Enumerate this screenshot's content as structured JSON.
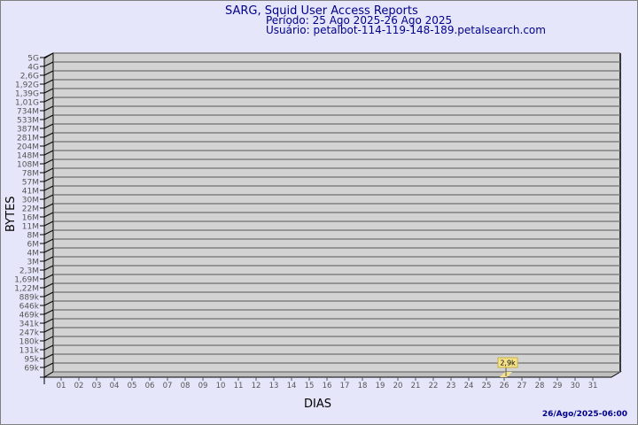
{
  "header": {
    "title": "SARG, Squid User Access Reports",
    "period": "Período: 25 Ago 2025-26 Ago 2025",
    "user": "Usuário: petalbot-114-119-148-189.petalsearch.com"
  },
  "footer": {
    "timestamp": "26/Ago/2025-06:00"
  },
  "colors": {
    "background": "#e6e6fa",
    "plot": "#d3d3d3",
    "text": "#00008b",
    "bar": "#f5e28a"
  },
  "chart_data": {
    "type": "bar",
    "title": "SARG, Squid User Access Reports",
    "xlabel": "DIAS",
    "ylabel": "BYTES",
    "y_scale": "log",
    "grid": true,
    "y_ticks": [
      "5G",
      "4G",
      "2,6G",
      "1,92G",
      "1,39G",
      "1,01G",
      "734M",
      "533M",
      "387M",
      "281M",
      "204M",
      "148M",
      "108M",
      "78M",
      "57M",
      "41M",
      "30M",
      "22M",
      "16M",
      "11M",
      "8M",
      "6M",
      "4M",
      "3M",
      "2,3M",
      "1,69M",
      "1,22M",
      "889k",
      "646k",
      "469k",
      "341k",
      "247k",
      "180k",
      "131k",
      "95k",
      "69k"
    ],
    "categories": [
      "01",
      "02",
      "03",
      "04",
      "05",
      "06",
      "07",
      "08",
      "09",
      "10",
      "11",
      "12",
      "13",
      "14",
      "15",
      "16",
      "17",
      "18",
      "19",
      "20",
      "21",
      "22",
      "23",
      "24",
      "25",
      "26",
      "27",
      "28",
      "29",
      "30",
      "31"
    ],
    "series": [
      {
        "values": [
          null,
          null,
          null,
          null,
          null,
          null,
          null,
          null,
          null,
          null,
          null,
          null,
          null,
          null,
          null,
          null,
          null,
          null,
          null,
          null,
          null,
          null,
          null,
          null,
          null,
          2900,
          null,
          null,
          null,
          null,
          null
        ]
      }
    ],
    "data_labels": [
      {
        "category": "26",
        "text": "2,9k"
      }
    ]
  }
}
